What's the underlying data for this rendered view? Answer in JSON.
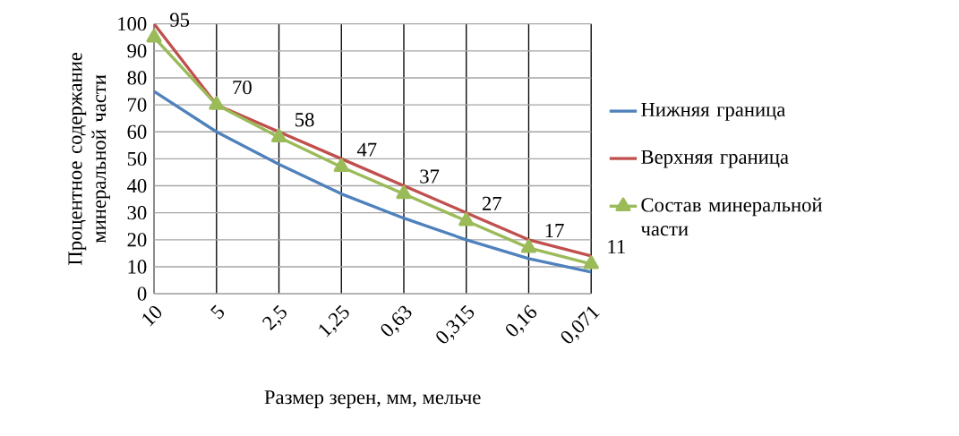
{
  "chart_data": {
    "type": "line",
    "ylabel": "Процентное содержание минеральной части",
    "xlabel": "Размер зерен, мм, мельче",
    "categories": [
      "10",
      "5",
      "2,5",
      "1,25",
      "0,63",
      "0,315",
      "0,16",
      "0,071"
    ],
    "series": [
      {
        "name": "Нижняя граница",
        "color": "#4f81bd",
        "marker": "none",
        "values": [
          75,
          60,
          48,
          37,
          28,
          20,
          13,
          8
        ]
      },
      {
        "name": "Верхняя граница",
        "color": "#c0504d",
        "marker": "none",
        "values": [
          100,
          70,
          60,
          50,
          40,
          30,
          20,
          14
        ]
      },
      {
        "name": "Состав минеральной части",
        "color": "#9bbb59",
        "marker": "triangle",
        "values": [
          95,
          70,
          58,
          47,
          37,
          27,
          17,
          11
        ],
        "value_labels": [
          "95",
          "70",
          "58",
          "47",
          "37",
          "27",
          "17",
          "11"
        ]
      }
    ],
    "ylim": [
      0,
      100
    ],
    "yticks": [
      0,
      10,
      20,
      30,
      40,
      50,
      60,
      70,
      80,
      90,
      100
    ],
    "grid": true,
    "legend": "right"
  }
}
